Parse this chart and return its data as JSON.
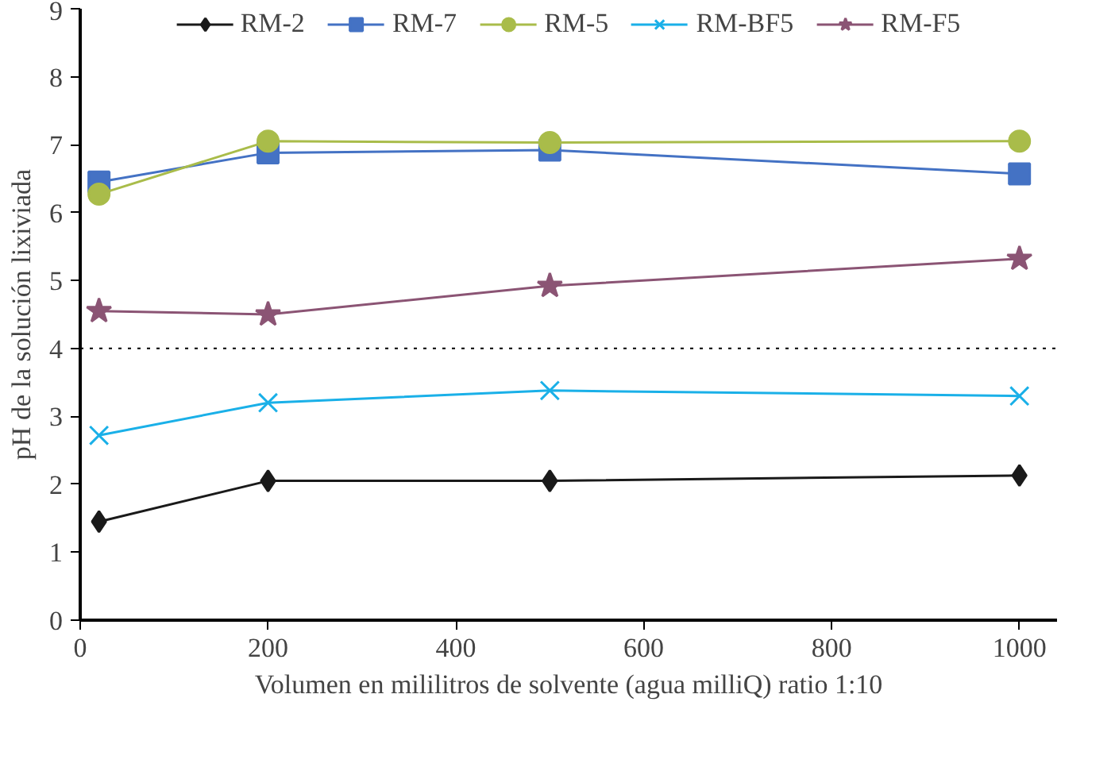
{
  "chart_data": {
    "type": "line",
    "xlabel": "Volumen en mililitros de solvente (agua milliQ) ratio 1:10",
    "ylabel": "pH de la solución lixiviada",
    "x": [
      20,
      200,
      500,
      1000
    ],
    "series": [
      {
        "name": "RM-2",
        "color": "#1a1a1a",
        "marker": "diamond",
        "values": [
          1.45,
          2.05,
          2.05,
          2.13
        ]
      },
      {
        "name": "RM-7",
        "color": "#4472c4",
        "marker": "square",
        "values": [
          6.45,
          6.88,
          6.92,
          6.57
        ]
      },
      {
        "name": "RM-5",
        "color": "#a9bc4a",
        "marker": "circle",
        "values": [
          6.27,
          7.05,
          7.03,
          7.05
        ]
      },
      {
        "name": "RM-BF5",
        "color": "#1ab0e8",
        "marker": "cross",
        "values": [
          2.72,
          3.2,
          3.38,
          3.3
        ]
      },
      {
        "name": "RM-F5",
        "color": "#8b5474",
        "marker": "star",
        "values": [
          4.55,
          4.5,
          4.92,
          5.32
        ]
      }
    ],
    "xlim": [
      0,
      1040
    ],
    "xticks": [
      0,
      200,
      400,
      600,
      800,
      1000
    ],
    "ylim": [
      0,
      9
    ],
    "yticks": [
      0,
      1,
      2,
      3,
      4,
      5,
      6,
      7,
      8,
      9
    ],
    "ref_lines": [
      {
        "axis": "y",
        "value": 4,
        "color": "#000000",
        "line_style": "dotted"
      }
    ],
    "grid": false,
    "legend": "top",
    "line_style": "solid"
  }
}
